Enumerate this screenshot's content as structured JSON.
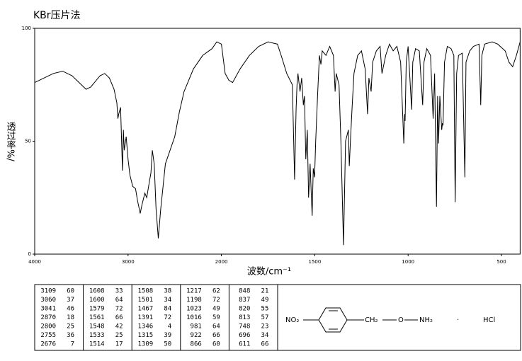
{
  "chart_data": {
    "type": "line",
    "title": "KBr压片法",
    "xlabel": "波数/cm⁻¹",
    "ylabel": "透过率%/",
    "xlim": [
      4000,
      400
    ],
    "ylim": [
      0,
      100
    ],
    "xticks": [
      4000,
      3000,
      2000,
      1500,
      1000,
      500
    ],
    "yticks": [
      0,
      50,
      100
    ],
    "color": "#000000",
    "x": [
      4000,
      3800,
      3700,
      3600,
      3500,
      3450,
      3400,
      3300,
      3250,
      3200,
      3150,
      3120,
      3109,
      3100,
      3080,
      3060,
      3050,
      3041,
      3020,
      3000,
      2980,
      2950,
      2920,
      2900,
      2870,
      2850,
      2820,
      2800,
      2780,
      2755,
      2740,
      2720,
      2700,
      2676,
      2650,
      2600,
      2500,
      2450,
      2400,
      2300,
      2200,
      2100,
      2050,
      2000,
      1980,
      1960,
      1940,
      1900,
      1850,
      1800,
      1750,
      1700,
      1680,
      1650,
      1620,
      1608,
      1600,
      1595,
      1590,
      1579,
      1570,
      1561,
      1555,
      1548,
      1540,
      1533,
      1525,
      1514,
      1508,
      1501,
      1495,
      1485,
      1475,
      1467,
      1460,
      1440,
      1420,
      1400,
      1391,
      1385,
      1370,
      1360,
      1346,
      1335,
      1320,
      1315,
      1309,
      1300,
      1290,
      1270,
      1250,
      1230,
      1217,
      1210,
      1198,
      1190,
      1170,
      1150,
      1140,
      1120,
      1100,
      1080,
      1060,
      1040,
      1023,
      1019,
      1016,
      1010,
      1000,
      981,
      975,
      960,
      940,
      922,
      915,
      900,
      880,
      866,
      858,
      848,
      842,
      837,
      830,
      820,
      816,
      813,
      805,
      790,
      770,
      755,
      748,
      740,
      730,
      710,
      696,
      690,
      670,
      650,
      620,
      611,
      605,
      590,
      550,
      520,
      480,
      460,
      440,
      420,
      400
    ],
    "values": [
      76,
      80,
      81,
      79,
      75,
      73,
      74,
      79,
      80,
      78,
      73,
      67,
      60,
      62,
      65,
      37,
      55,
      46,
      52,
      42,
      35,
      30,
      29,
      24,
      18,
      22,
      27,
      25,
      30,
      36,
      46,
      40,
      20,
      7,
      20,
      40,
      52,
      63,
      72,
      82,
      88,
      91,
      94,
      93,
      80,
      77,
      76,
      82,
      88,
      92,
      94,
      93,
      88,
      80,
      75,
      33,
      64,
      75,
      80,
      72,
      78,
      66,
      70,
      42,
      55,
      25,
      40,
      17,
      38,
      34,
      50,
      70,
      88,
      84,
      90,
      88,
      92,
      88,
      72,
      80,
      75,
      50,
      4,
      50,
      55,
      39,
      50,
      65,
      80,
      88,
      90,
      82,
      62,
      78,
      72,
      85,
      90,
      92,
      80,
      88,
      93,
      90,
      92,
      85,
      49,
      62,
      59,
      85,
      92,
      64,
      85,
      91,
      90,
      66,
      85,
      91,
      88,
      60,
      80,
      21,
      70,
      49,
      70,
      55,
      58,
      57,
      85,
      92,
      91,
      88,
      23,
      80,
      88,
      89,
      34,
      85,
      90,
      92,
      93,
      66,
      88,
      93,
      94,
      93,
      90,
      85,
      83,
      88,
      94
    ]
  },
  "peak_table": [
    [
      [
        3109,
        60
      ],
      [
        3060,
        37
      ],
      [
        3041,
        46
      ],
      [
        2870,
        18
      ],
      [
        2800,
        25
      ],
      [
        2755,
        36
      ],
      [
        2676,
        7
      ]
    ],
    [
      [
        1608,
        33
      ],
      [
        1600,
        64
      ],
      [
        1579,
        72
      ],
      [
        1561,
        66
      ],
      [
        1548,
        42
      ],
      [
        1533,
        25
      ],
      [
        1514,
        17
      ]
    ],
    [
      [
        1508,
        38
      ],
      [
        1501,
        34
      ],
      [
        1467,
        84
      ],
      [
        1391,
        72
      ],
      [
        1346,
        4
      ],
      [
        1315,
        39
      ],
      [
        1309,
        50
      ]
    ],
    [
      [
        1217,
        62
      ],
      [
        1198,
        72
      ],
      [
        1023,
        49
      ],
      [
        1016,
        59
      ],
      [
        981,
        64
      ],
      [
        922,
        66
      ],
      [
        866,
        60
      ]
    ],
    [
      [
        848,
        21
      ],
      [
        837,
        49
      ],
      [
        820,
        55
      ],
      [
        813,
        57
      ],
      [
        748,
        23
      ],
      [
        696,
        34
      ],
      [
        611,
        66
      ]
    ]
  ],
  "structure": {
    "nitro": "NO₂",
    "methylene": "CH₂",
    "oxygen": "O",
    "amine": "NH₂",
    "salt_dot": "·",
    "salt": "HCl"
  }
}
